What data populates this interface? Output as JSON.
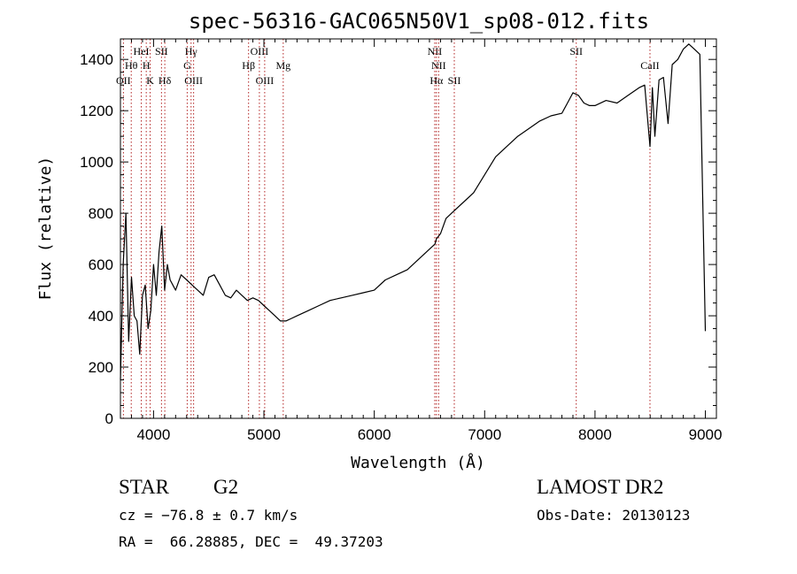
{
  "chart_data": {
    "type": "line",
    "title": "spec-56316-GAC065N50V1_sp08-012.fits",
    "xlabel": "Wavelength (Å)",
    "ylabel": "Flux (relative)",
    "xlim": [
      3700,
      9100
    ],
    "ylim": [
      0,
      1480
    ],
    "x_ticks": [
      4000,
      5000,
      6000,
      7000,
      8000,
      9000
    ],
    "y_ticks": [
      0,
      200,
      400,
      600,
      800,
      1000,
      1200,
      1400
    ],
    "grid": false,
    "series": [
      {
        "x": [
          3700,
          3725,
          3750,
          3775,
          3800,
          3825,
          3850,
          3875,
          3900,
          3925,
          3950,
          3975,
          4000,
          4025,
          4050,
          4075,
          4100,
          4125,
          4150,
          4175,
          4200,
          4250,
          4300,
          4350,
          4400,
          4450,
          4500,
          4550,
          4600,
          4650,
          4700,
          4750,
          4800,
          4850,
          4900,
          4950,
          5000,
          5050,
          5100,
          5150,
          5200,
          5250,
          5300,
          5400,
          5500,
          5600,
          5700,
          5800,
          5900,
          6000,
          6100,
          6200,
          6300,
          6400,
          6500,
          6550,
          6563,
          6600,
          6650,
          6700,
          6750,
          6800,
          6900,
          7000,
          7100,
          7200,
          7300,
          7400,
          7500,
          7600,
          7700,
          7750,
          7800,
          7850,
          7900,
          7950,
          8000,
          8100,
          8200,
          8300,
          8400,
          8450,
          8498,
          8520,
          8542,
          8580,
          8620,
          8662,
          8700,
          8750,
          8800,
          8850,
          8900,
          8950,
          9000
        ],
        "y": [
          150,
          600,
          800,
          300,
          550,
          400,
          380,
          250,
          480,
          520,
          350,
          420,
          600,
          480,
          650,
          750,
          500,
          600,
          540,
          520,
          500,
          560,
          540,
          520,
          500,
          480,
          550,
          560,
          520,
          480,
          470,
          500,
          480,
          460,
          470,
          460,
          440,
          420,
          400,
          380,
          380,
          390,
          400,
          420,
          440,
          460,
          470,
          480,
          490,
          500,
          540,
          560,
          580,
          620,
          660,
          680,
          700,
          720,
          780,
          800,
          820,
          840,
          880,
          950,
          1020,
          1060,
          1100,
          1130,
          1160,
          1180,
          1190,
          1230,
          1270,
          1260,
          1230,
          1220,
          1220,
          1240,
          1230,
          1260,
          1290,
          1300,
          1060,
          1290,
          1100,
          1320,
          1330,
          1150,
          1380,
          1400,
          1440,
          1460,
          1440,
          1420,
          340
        ]
      }
    ],
    "lines": [
      {
        "label": "Hθ",
        "wavelength": 3798,
        "row": 2
      },
      {
        "label": "OII",
        "wavelength": 3727,
        "row": 3
      },
      {
        "label": "HeI",
        "wavelength": 3889,
        "row": 1
      },
      {
        "label": "H",
        "wavelength": 3934,
        "row": 2
      },
      {
        "label": "K",
        "wavelength": 3969,
        "row": 3
      },
      {
        "label": "SII",
        "wavelength": 4072,
        "row": 1
      },
      {
        "label": "Hδ",
        "wavelength": 4102,
        "row": 3
      },
      {
        "label": "Hγ",
        "wavelength": 4340,
        "row": 1
      },
      {
        "label": "G",
        "wavelength": 4305,
        "row": 2
      },
      {
        "label": "OIII",
        "wavelength": 4363,
        "row": 3
      },
      {
        "label": "OIII",
        "wavelength": 4959,
        "row": 1
      },
      {
        "label": "Hβ",
        "wavelength": 4861,
        "row": 2
      },
      {
        "label": "OIII",
        "wavelength": 5007,
        "row": 3
      },
      {
        "label": "Mg",
        "wavelength": 5175,
        "row": 2
      },
      {
        "label": "NII",
        "wavelength": 6548,
        "row": 1
      },
      {
        "label": "NII",
        "wavelength": 6583,
        "row": 2
      },
      {
        "label": "Hα",
        "wavelength": 6563,
        "row": 3
      },
      {
        "label": "SII",
        "wavelength": 6725,
        "row": 3
      },
      {
        "label": "SII",
        "wavelength": 7830,
        "row": 1
      },
      {
        "label": "CaII",
        "wavelength": 8498,
        "row": 2
      }
    ]
  },
  "info": {
    "object_class": "STAR",
    "subclass": "G2",
    "survey": "LAMOST DR2",
    "redshift": "cz = −76.8 ± 0.7 km/s",
    "obs_date": "Obs-Date: 20130123",
    "coords": "RA =  66.28885, DEC =  49.37203"
  }
}
